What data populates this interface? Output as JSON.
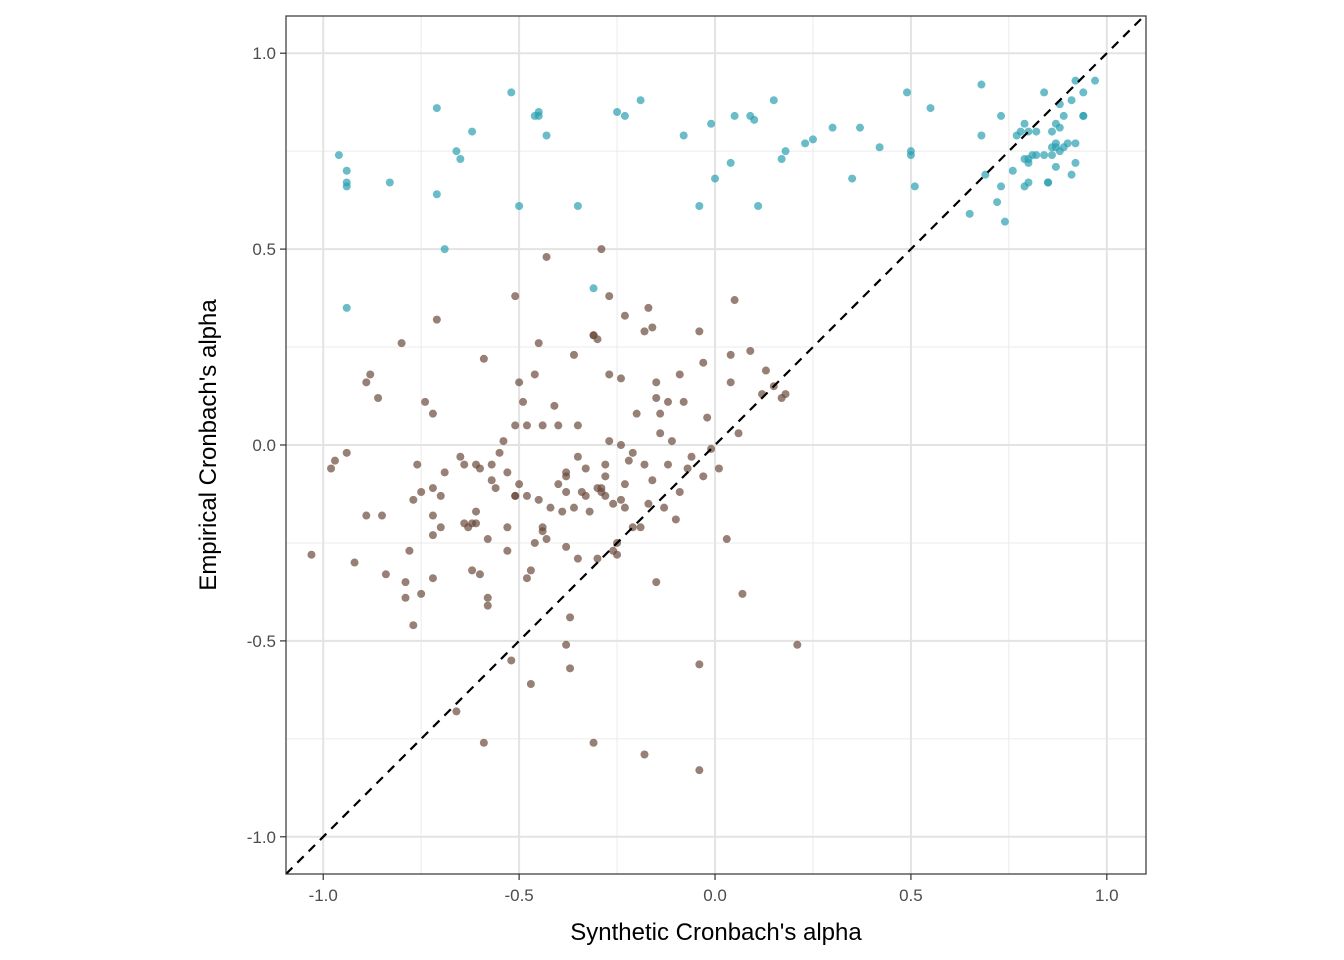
{
  "chart_data": {
    "type": "scatter",
    "title": "",
    "xlabel": "Synthetic Cronbach's alpha",
    "ylabel": "Empirical Cronbach's alpha",
    "xlim": [
      -1.095,
      1.1
    ],
    "ylim": [
      -1.095,
      1.095
    ],
    "x_ticks": [
      -1.0,
      -0.5,
      0.0,
      0.5,
      1.0
    ],
    "x_tick_labels": [
      "-1.0",
      "-0.5",
      "0.0",
      "0.5",
      "1.0"
    ],
    "y_ticks": [
      -1.0,
      -0.5,
      0.0,
      0.5,
      1.0
    ],
    "y_tick_labels": [
      "-1.0",
      "-0.5",
      "0.0",
      "0.5",
      "1.0"
    ],
    "grid": true,
    "legend": "none",
    "reference_line": {
      "style": "dashed",
      "color": "#000000",
      "slope": 1,
      "intercept": 0
    },
    "series": [
      {
        "color": "#2aa0b0",
        "points": [
          [
            -0.96,
            0.74
          ],
          [
            -0.94,
            0.7
          ],
          [
            -0.94,
            0.67
          ],
          [
            -0.94,
            0.66
          ],
          [
            -0.94,
            0.35
          ],
          [
            -0.83,
            0.67
          ],
          [
            -0.71,
            0.86
          ],
          [
            -0.71,
            0.64
          ],
          [
            -0.69,
            0.5
          ],
          [
            -0.66,
            0.75
          ],
          [
            -0.65,
            0.73
          ],
          [
            -0.62,
            0.8
          ],
          [
            -0.52,
            0.9
          ],
          [
            -0.5,
            0.61
          ],
          [
            -0.45,
            0.84
          ],
          [
            -0.45,
            0.85
          ],
          [
            -0.46,
            0.84
          ],
          [
            -0.43,
            0.79
          ],
          [
            -0.35,
            0.61
          ],
          [
            -0.31,
            0.4
          ],
          [
            -0.25,
            0.85
          ],
          [
            -0.23,
            0.84
          ],
          [
            -0.19,
            0.88
          ],
          [
            -0.08,
            0.79
          ],
          [
            -0.04,
            0.61
          ],
          [
            -0.01,
            0.82
          ],
          [
            0.0,
            0.68
          ],
          [
            0.04,
            0.72
          ],
          [
            0.05,
            0.84
          ],
          [
            0.09,
            0.84
          ],
          [
            0.1,
            0.83
          ],
          [
            0.11,
            0.61
          ],
          [
            0.15,
            0.88
          ],
          [
            0.17,
            0.73
          ],
          [
            0.18,
            0.75
          ],
          [
            0.23,
            0.77
          ],
          [
            0.25,
            0.78
          ],
          [
            0.3,
            0.81
          ],
          [
            0.35,
            0.68
          ],
          [
            0.37,
            0.81
          ],
          [
            0.42,
            0.76
          ],
          [
            0.49,
            0.9
          ],
          [
            0.5,
            0.74
          ],
          [
            0.5,
            0.75
          ],
          [
            0.51,
            0.66
          ],
          [
            0.55,
            0.86
          ],
          [
            0.65,
            0.59
          ],
          [
            0.68,
            0.92
          ],
          [
            0.68,
            0.79
          ],
          [
            0.69,
            0.69
          ],
          [
            0.72,
            0.62
          ],
          [
            0.73,
            0.84
          ],
          [
            0.73,
            0.66
          ],
          [
            0.74,
            0.57
          ],
          [
            0.76,
            0.7
          ],
          [
            0.77,
            0.79
          ],
          [
            0.78,
            0.8
          ],
          [
            0.79,
            0.66
          ],
          [
            0.79,
            0.82
          ],
          [
            0.79,
            0.73
          ],
          [
            0.8,
            0.72
          ],
          [
            0.8,
            0.73
          ],
          [
            0.8,
            0.8
          ],
          [
            0.8,
            0.67
          ],
          [
            0.81,
            0.74
          ],
          [
            0.82,
            0.74
          ],
          [
            0.82,
            0.8
          ],
          [
            0.84,
            0.9
          ],
          [
            0.84,
            0.74
          ],
          [
            0.85,
            0.67
          ],
          [
            0.85,
            0.67
          ],
          [
            0.86,
            0.74
          ],
          [
            0.86,
            0.76
          ],
          [
            0.86,
            0.8
          ],
          [
            0.87,
            0.82
          ],
          [
            0.87,
            0.77
          ],
          [
            0.87,
            0.76
          ],
          [
            0.87,
            0.71
          ],
          [
            0.88,
            0.75
          ],
          [
            0.88,
            0.87
          ],
          [
            0.88,
            0.81
          ],
          [
            0.89,
            0.76
          ],
          [
            0.89,
            0.84
          ],
          [
            0.9,
            0.77
          ],
          [
            0.91,
            0.69
          ],
          [
            0.91,
            0.88
          ],
          [
            0.92,
            0.93
          ],
          [
            0.92,
            0.77
          ],
          [
            0.92,
            0.72
          ],
          [
            0.94,
            0.9
          ],
          [
            0.94,
            0.84
          ],
          [
            0.94,
            0.84
          ],
          [
            0.97,
            0.93
          ]
        ]
      },
      {
        "color": "#6b4a3c",
        "points": [
          [
            -1.03,
            -0.28
          ],
          [
            -0.98,
            -0.06
          ],
          [
            -0.97,
            -0.04
          ],
          [
            -0.94,
            -0.02
          ],
          [
            -0.92,
            -0.3
          ],
          [
            -0.89,
            -0.18
          ],
          [
            -0.89,
            0.16
          ],
          [
            -0.88,
            0.18
          ],
          [
            -0.86,
            0.12
          ],
          [
            -0.85,
            -0.18
          ],
          [
            -0.84,
            -0.33
          ],
          [
            -0.8,
            0.26
          ],
          [
            -0.79,
            -0.35
          ],
          [
            -0.79,
            -0.39
          ],
          [
            -0.78,
            -0.27
          ],
          [
            -0.77,
            -0.14
          ],
          [
            -0.77,
            -0.46
          ],
          [
            -0.76,
            -0.05
          ],
          [
            -0.75,
            -0.12
          ],
          [
            -0.75,
            -0.38
          ],
          [
            -0.74,
            0.11
          ],
          [
            -0.72,
            -0.34
          ],
          [
            -0.72,
            -0.18
          ],
          [
            -0.72,
            -0.11
          ],
          [
            -0.72,
            -0.23
          ],
          [
            -0.72,
            0.08
          ],
          [
            -0.71,
            0.32
          ],
          [
            -0.7,
            -0.21
          ],
          [
            -0.7,
            -0.13
          ],
          [
            -0.69,
            -0.07
          ],
          [
            -0.66,
            -0.68
          ],
          [
            -0.65,
            -0.03
          ],
          [
            -0.64,
            -0.05
          ],
          [
            -0.64,
            -0.2
          ],
          [
            -0.63,
            -0.21
          ],
          [
            -0.62,
            -0.32
          ],
          [
            -0.62,
            -0.2
          ],
          [
            -0.61,
            -0.2
          ],
          [
            -0.61,
            -0.17
          ],
          [
            -0.61,
            -0.05
          ],
          [
            -0.6,
            -0.06
          ],
          [
            -0.6,
            -0.33
          ],
          [
            -0.59,
            0.22
          ],
          [
            -0.58,
            -0.41
          ],
          [
            -0.58,
            -0.24
          ],
          [
            -0.58,
            -0.39
          ],
          [
            -0.59,
            -0.76
          ],
          [
            -0.57,
            -0.09
          ],
          [
            -0.57,
            -0.05
          ],
          [
            -0.56,
            -0.11
          ],
          [
            -0.55,
            -0.02
          ],
          [
            -0.54,
            0.01
          ],
          [
            -0.53,
            -0.07
          ],
          [
            -0.53,
            -0.21
          ],
          [
            -0.53,
            -0.27
          ],
          [
            -0.52,
            -0.55
          ],
          [
            -0.51,
            0.38
          ],
          [
            -0.51,
            -0.13
          ],
          [
            -0.51,
            0.05
          ],
          [
            -0.51,
            -0.13
          ],
          [
            -0.5,
            0.16
          ],
          [
            -0.5,
            -0.1
          ],
          [
            -0.49,
            0.11
          ],
          [
            -0.48,
            0.05
          ],
          [
            -0.48,
            -0.34
          ],
          [
            -0.48,
            -0.13
          ],
          [
            -0.47,
            -0.32
          ],
          [
            -0.47,
            -0.61
          ],
          [
            -0.46,
            0.18
          ],
          [
            -0.46,
            -0.25
          ],
          [
            -0.45,
            0.26
          ],
          [
            -0.45,
            -0.14
          ],
          [
            -0.44,
            -0.22
          ],
          [
            -0.44,
            -0.21
          ],
          [
            -0.44,
            0.05
          ],
          [
            -0.43,
            0.48
          ],
          [
            -0.43,
            -0.24
          ],
          [
            -0.42,
            -0.16
          ],
          [
            -0.41,
            0.1
          ],
          [
            -0.4,
            -0.1
          ],
          [
            -0.4,
            0.05
          ],
          [
            -0.39,
            -0.17
          ],
          [
            -0.38,
            -0.26
          ],
          [
            -0.38,
            -0.08
          ],
          [
            -0.38,
            -0.07
          ],
          [
            -0.38,
            -0.12
          ],
          [
            -0.38,
            -0.51
          ],
          [
            -0.37,
            -0.44
          ],
          [
            -0.37,
            -0.57
          ],
          [
            -0.36,
            0.23
          ],
          [
            -0.36,
            -0.16
          ],
          [
            -0.35,
            -0.03
          ],
          [
            -0.35,
            -0.29
          ],
          [
            -0.35,
            0.05
          ],
          [
            -0.34,
            -0.12
          ],
          [
            -0.33,
            -0.06
          ],
          [
            -0.33,
            -0.13
          ],
          [
            -0.32,
            -0.17
          ],
          [
            -0.31,
            0.28
          ],
          [
            -0.31,
            0.28
          ],
          [
            -0.31,
            -0.76
          ],
          [
            -0.3,
            -0.11
          ],
          [
            -0.3,
            0.27
          ],
          [
            -0.3,
            -0.29
          ],
          [
            -0.29,
            0.5
          ],
          [
            -0.29,
            -0.12
          ],
          [
            -0.29,
            -0.11
          ],
          [
            -0.28,
            -0.05
          ],
          [
            -0.28,
            -0.13
          ],
          [
            -0.28,
            -0.08
          ],
          [
            -0.27,
            0.01
          ],
          [
            -0.27,
            0.18
          ],
          [
            -0.27,
            0.38
          ],
          [
            -0.26,
            -0.15
          ],
          [
            -0.26,
            -0.27
          ],
          [
            -0.25,
            -0.25
          ],
          [
            -0.25,
            -0.28
          ],
          [
            -0.24,
            -0.14
          ],
          [
            -0.24,
            0.0
          ],
          [
            -0.24,
            0.17
          ],
          [
            -0.23,
            -0.16
          ],
          [
            -0.23,
            -0.1
          ],
          [
            -0.23,
            0.33
          ],
          [
            -0.22,
            -0.04
          ],
          [
            -0.21,
            -0.02
          ],
          [
            -0.21,
            -0.21
          ],
          [
            -0.2,
            0.08
          ],
          [
            -0.19,
            -0.21
          ],
          [
            -0.18,
            -0.79
          ],
          [
            -0.18,
            -0.05
          ],
          [
            -0.18,
            0.29
          ],
          [
            -0.17,
            -0.15
          ],
          [
            -0.17,
            0.35
          ],
          [
            -0.16,
            -0.09
          ],
          [
            -0.16,
            0.3
          ],
          [
            -0.15,
            0.16
          ],
          [
            -0.15,
            -0.35
          ],
          [
            -0.15,
            0.12
          ],
          [
            -0.14,
            0.08
          ],
          [
            -0.14,
            0.03
          ],
          [
            -0.13,
            -0.16
          ],
          [
            -0.12,
            -0.05
          ],
          [
            -0.12,
            0.11
          ],
          [
            -0.11,
            0.01
          ],
          [
            -0.1,
            -0.19
          ],
          [
            -0.09,
            -0.12
          ],
          [
            -0.09,
            0.18
          ],
          [
            -0.08,
            0.11
          ],
          [
            -0.07,
            -0.06
          ],
          [
            -0.06,
            -0.03
          ],
          [
            -0.04,
            0.29
          ],
          [
            -0.04,
            -0.56
          ],
          [
            -0.04,
            -0.83
          ],
          [
            -0.03,
            0.21
          ],
          [
            -0.03,
            -0.08
          ],
          [
            -0.02,
            0.07
          ],
          [
            -0.01,
            -0.01
          ],
          [
            0.01,
            -0.06
          ],
          [
            0.03,
            -0.24
          ],
          [
            0.04,
            0.16
          ],
          [
            0.04,
            0.23
          ],
          [
            0.05,
            0.37
          ],
          [
            0.06,
            0.03
          ],
          [
            0.07,
            -0.38
          ],
          [
            0.09,
            0.24
          ],
          [
            0.12,
            0.13
          ],
          [
            0.13,
            0.19
          ],
          [
            0.15,
            0.15
          ],
          [
            0.17,
            0.12
          ],
          [
            0.18,
            0.13
          ],
          [
            0.21,
            -0.51
          ]
        ]
      }
    ]
  }
}
